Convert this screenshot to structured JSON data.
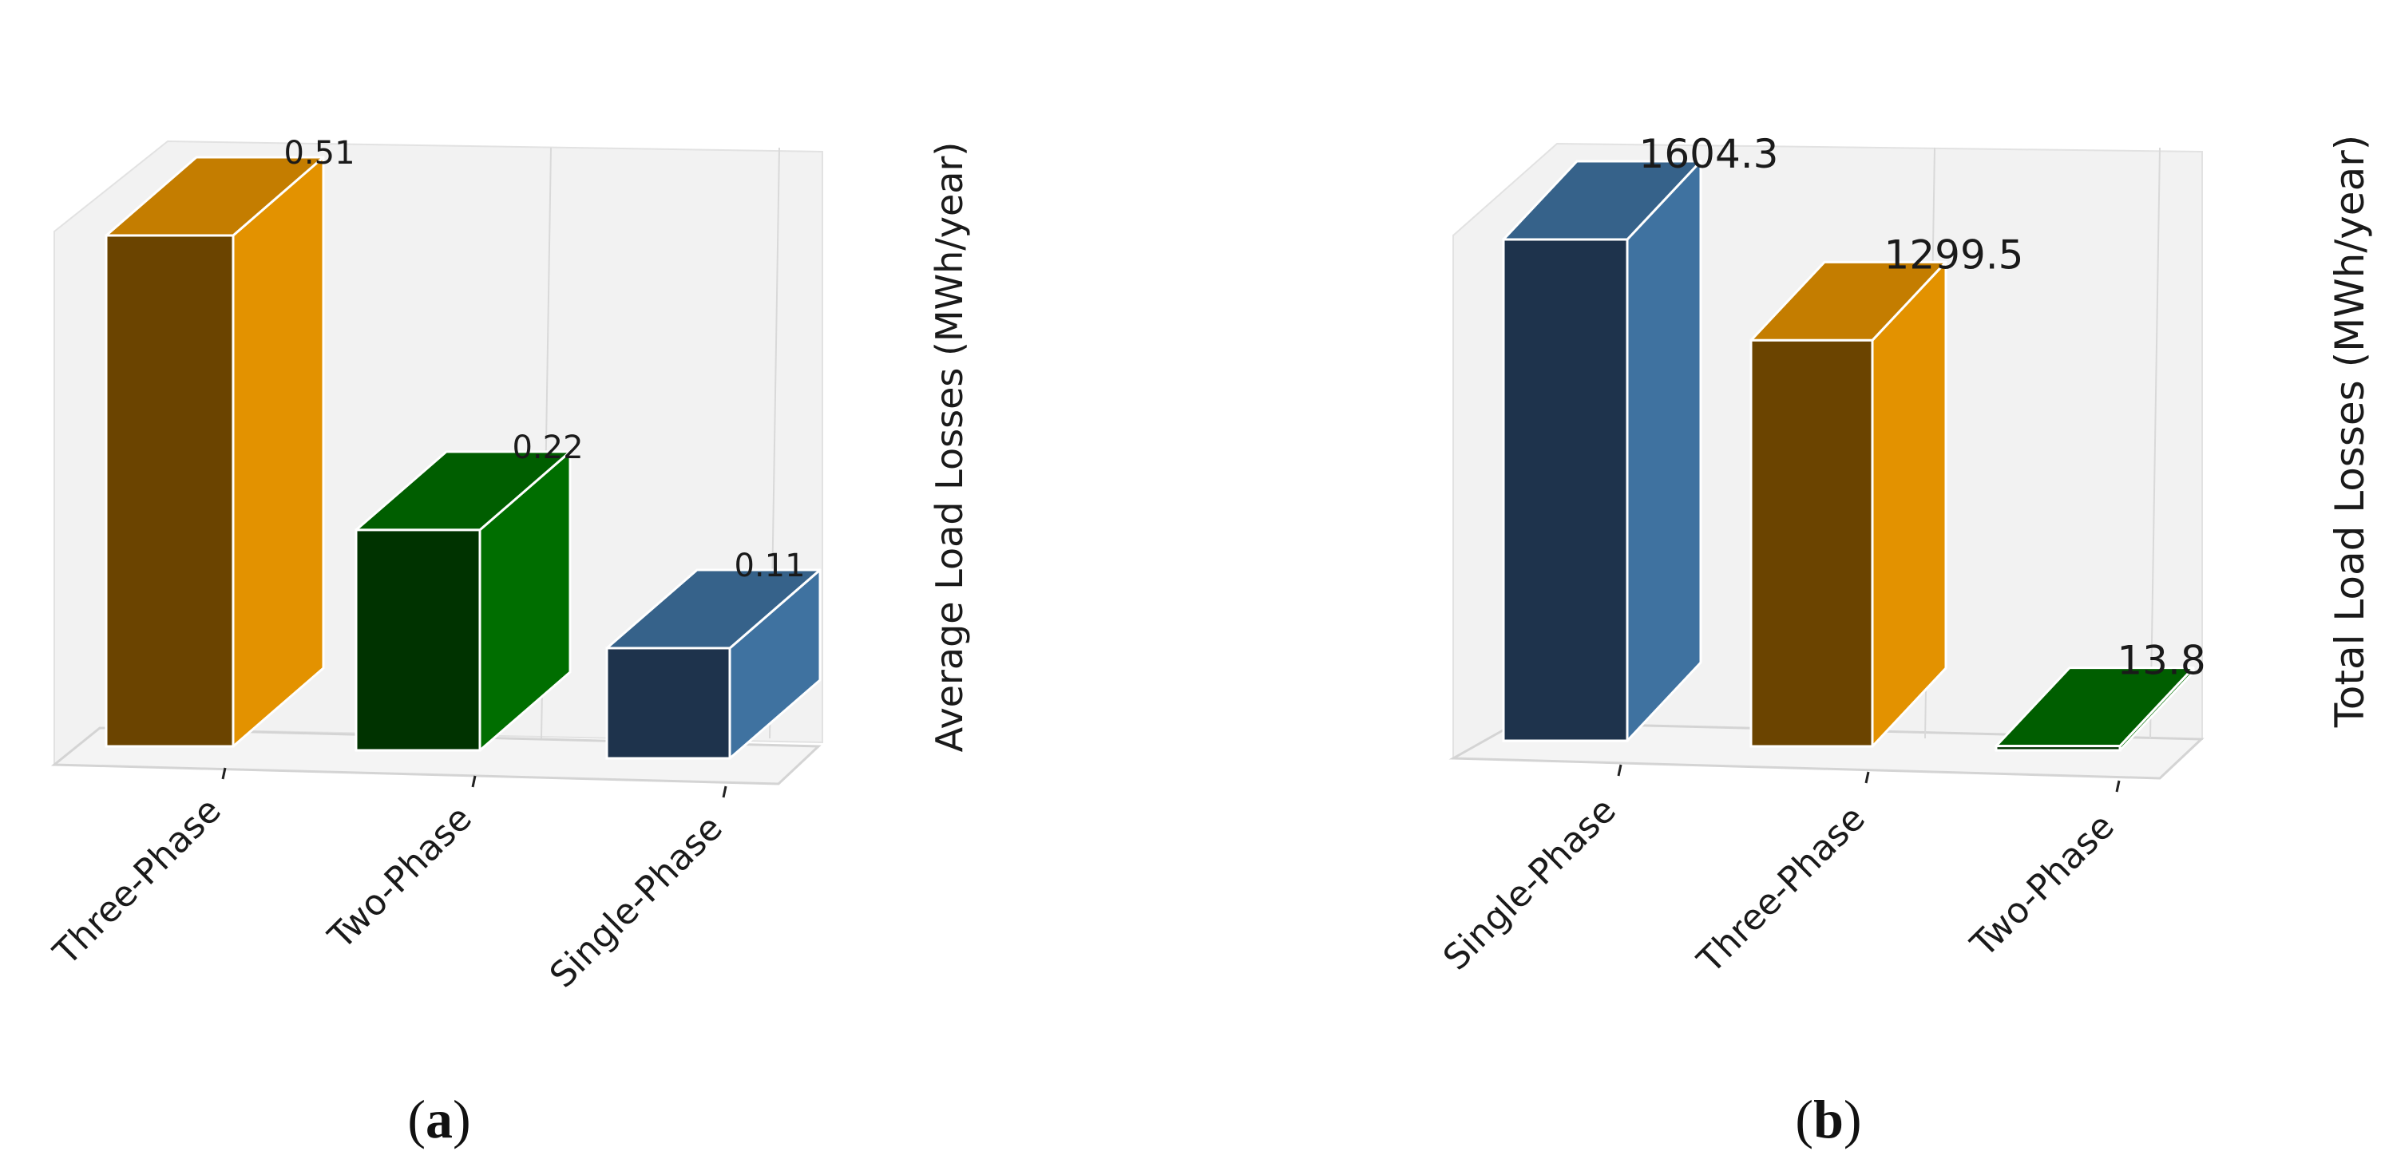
{
  "figure": {
    "panel_labels": [
      "a",
      "b"
    ]
  },
  "chart_data": [
    {
      "type": "bar",
      "panel": "a",
      "categories": [
        "Three-Phase",
        "Two-Phase",
        "Single-Phase"
      ],
      "values": [
        0.51,
        0.22,
        0.11
      ],
      "value_labels": [
        "0.51",
        "0.22",
        "0.11"
      ],
      "ylabel": "Average Load Losses (MWh/year)",
      "xlabel": "",
      "title": "",
      "ylim": [
        0,
        0.51
      ],
      "grid": true,
      "style": "3d",
      "colors": [
        {
          "front": "#6b4400",
          "side": "#e39200",
          "top": "#c47d00"
        },
        {
          "front": "#003300",
          "side": "#006e00",
          "top": "#005e00"
        },
        {
          "front": "#1e334c",
          "side": "#3f72a0",
          "top": "#36628a"
        }
      ]
    },
    {
      "type": "bar",
      "panel": "b",
      "categories": [
        "Single-Phase",
        "Three-Phase",
        "Two-Phase"
      ],
      "values": [
        1604.3,
        1299.5,
        13.8
      ],
      "value_labels": [
        "1604.3",
        "1299.5",
        "13.8"
      ],
      "ylabel": "Total Load Losses (MWh/year)",
      "xlabel": "",
      "title": "",
      "ylim": [
        0,
        1604.3
      ],
      "grid": true,
      "style": "3d",
      "colors": [
        {
          "front": "#1e334c",
          "side": "#3f72a0",
          "top": "#36628a"
        },
        {
          "front": "#6b4400",
          "side": "#e39200",
          "top": "#c47d00"
        },
        {
          "front": "#003300",
          "side": "#006e00",
          "top": "#005e00"
        }
      ]
    }
  ]
}
